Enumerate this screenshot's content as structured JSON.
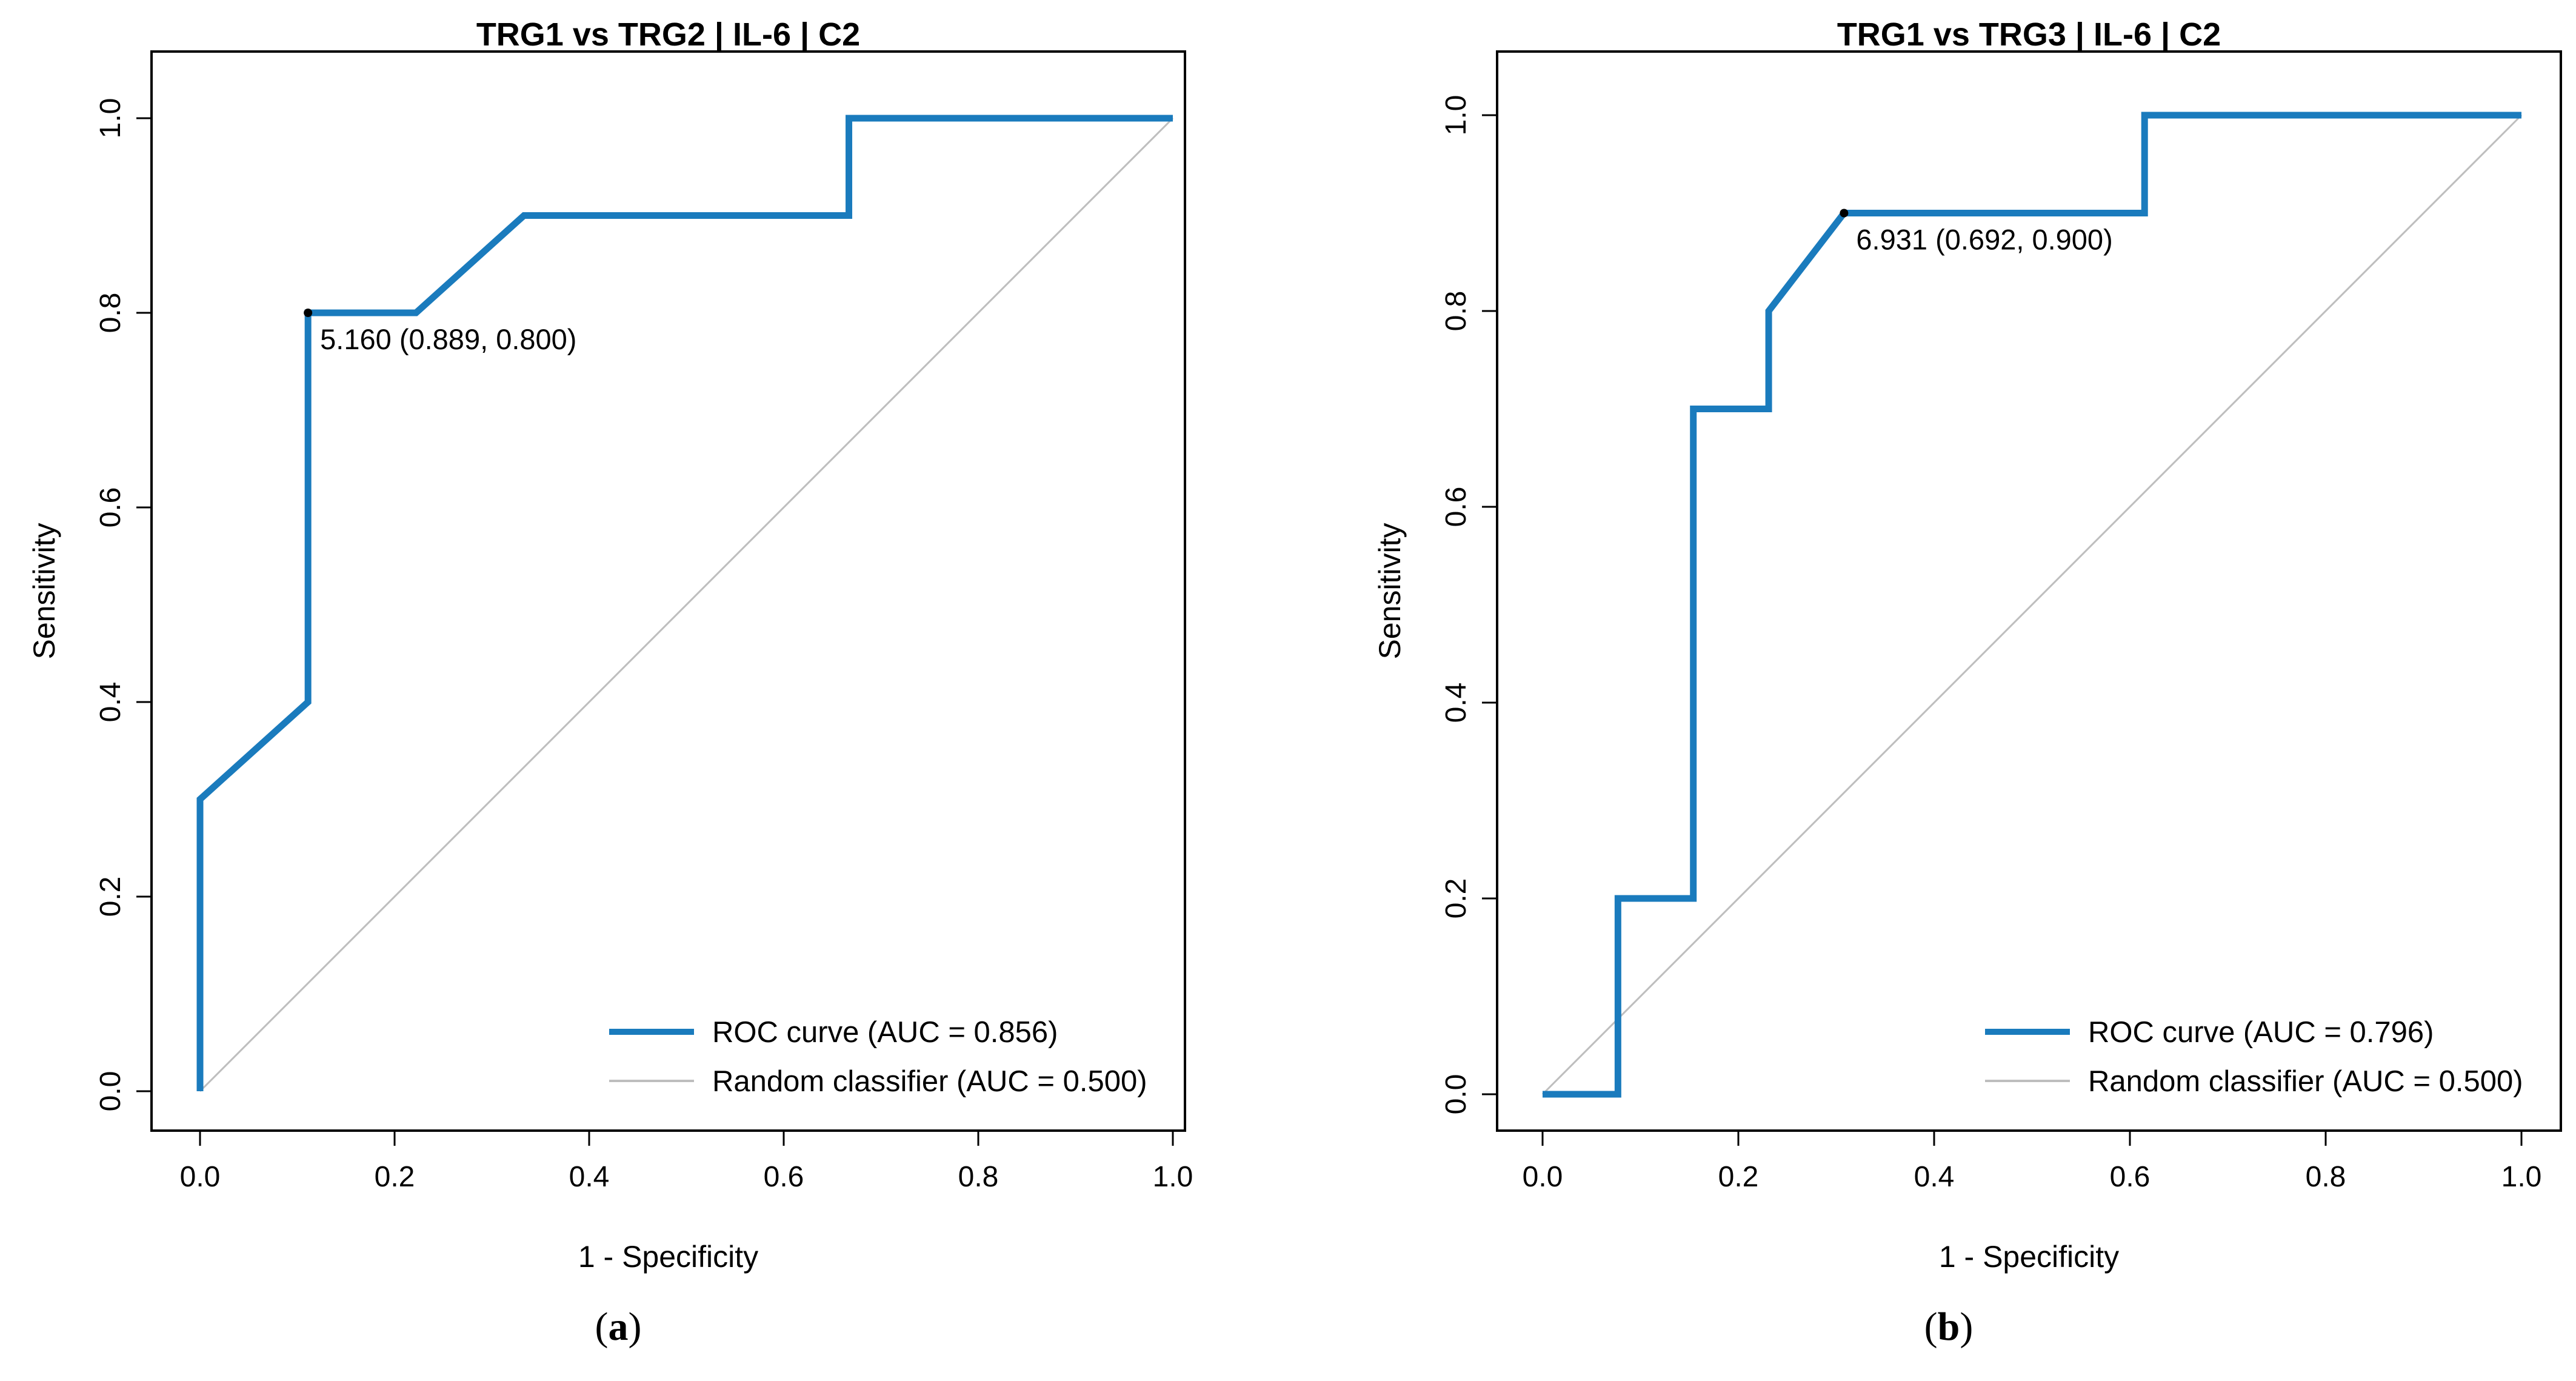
{
  "colors": {
    "roc": "#1a7bbd",
    "random": "#bebebe",
    "axis": "#000000",
    "threshold_point": "#000000"
  },
  "chart_data": [
    {
      "type": "line",
      "title": "TRG1 vs TRG2 | IL-6 | C2",
      "xlabel": "1 - Specificity",
      "ylabel": "Sensitivity",
      "xlim": [
        0,
        1
      ],
      "ylim": [
        0,
        1
      ],
      "xticks": [
        "0.0",
        "0.2",
        "0.4",
        "0.6",
        "0.8",
        "1.0"
      ],
      "yticks": [
        "0.0",
        "0.2",
        "0.4",
        "0.6",
        "0.8",
        "1.0"
      ],
      "series": [
        {
          "name": "ROC curve (AUC = 0.856)",
          "x": [
            0,
            0,
            0.111,
            0.111,
            0.222,
            0.333,
            0.667,
            0.667,
            1.0
          ],
          "y": [
            0,
            0.3,
            0.4,
            0.8,
            0.8,
            0.9,
            0.9,
            1.0,
            1.0
          ]
        },
        {
          "name": "Random classifier (AUC = 0.500)",
          "x": [
            0,
            1
          ],
          "y": [
            0,
            1
          ]
        }
      ],
      "threshold": {
        "x": 0.111,
        "y": 0.8,
        "label": "5.160 (0.889, 0.800)"
      },
      "legend_position": "bottom-right",
      "caption": {
        "open": "(",
        "letter": "a",
        "close": ")"
      }
    },
    {
      "type": "line",
      "title": "TRG1 vs TRG3 | IL-6 | C2",
      "xlabel": "1 - Specificity",
      "ylabel": "Sensitivity",
      "xlim": [
        0,
        1
      ],
      "ylim": [
        0,
        1
      ],
      "xticks": [
        "0.0",
        "0.2",
        "0.4",
        "0.6",
        "0.8",
        "1.0"
      ],
      "yticks": [
        "0.0",
        "0.2",
        "0.4",
        "0.6",
        "0.8",
        "1.0"
      ],
      "series": [
        {
          "name": "ROC curve (AUC = 0.796)",
          "x": [
            0,
            0.077,
            0.077,
            0.154,
            0.154,
            0.231,
            0.231,
            0.308,
            0.615,
            0.615,
            1.0
          ],
          "y": [
            0,
            0,
            0.2,
            0.2,
            0.7,
            0.7,
            0.8,
            0.9,
            0.9,
            1.0,
            1.0
          ]
        },
        {
          "name": "Random classifier (AUC = 0.500)",
          "x": [
            0,
            1
          ],
          "y": [
            0,
            1
          ]
        }
      ],
      "threshold": {
        "x": 0.308,
        "y": 0.9,
        "label": "6.931 (0.692, 0.900)"
      },
      "legend_position": "bottom-right",
      "caption": {
        "open": "(",
        "letter": "b",
        "close": ")"
      }
    }
  ]
}
